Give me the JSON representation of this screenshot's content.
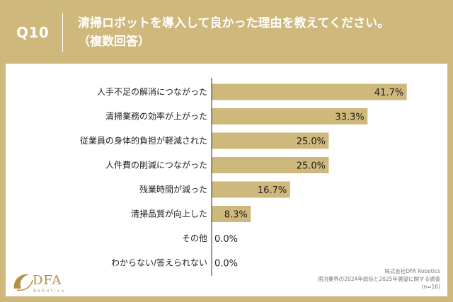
{
  "header": {
    "question_number": "Q10",
    "question_line1": "清掃ロボットを導入して良かった理由を教えてください。",
    "question_line2": "（複数回答）"
  },
  "chart_data": {
    "type": "bar",
    "orientation": "horizontal",
    "title": "清掃ロボットを導入して良かった理由を教えてください。（複数回答）",
    "categories": [
      "人手不足の解消につながった",
      "清掃業務の効率が上がった",
      "従業員の身体的負担が軽減された",
      "人件費の削減につながった",
      "残業時間が減った",
      "清掃品質が向上した",
      "その他",
      "わからない/答えられない"
    ],
    "values": [
      41.7,
      33.3,
      25.0,
      25.0,
      16.7,
      8.3,
      0.0,
      0.0
    ],
    "value_labels": [
      "41.7%",
      "33.3%",
      "25.0%",
      "25.0%",
      "16.7%",
      "8.3%",
      "0.0%",
      "0.0%"
    ],
    "unit": "%",
    "xlim": [
      0,
      50
    ],
    "bar_color": "#ceb87c"
  },
  "colors": {
    "background": "#ceb87c",
    "bar": "#ceb87c",
    "logo": "#b48f47"
  },
  "logo": {
    "name": "DFA",
    "subtitle": "Robotics"
  },
  "source": {
    "line1": "株式会社DFA Robotics",
    "line2": "宿泊業界の2024年総括と2025年展望に関する調査",
    "line3": "(n=16)"
  }
}
